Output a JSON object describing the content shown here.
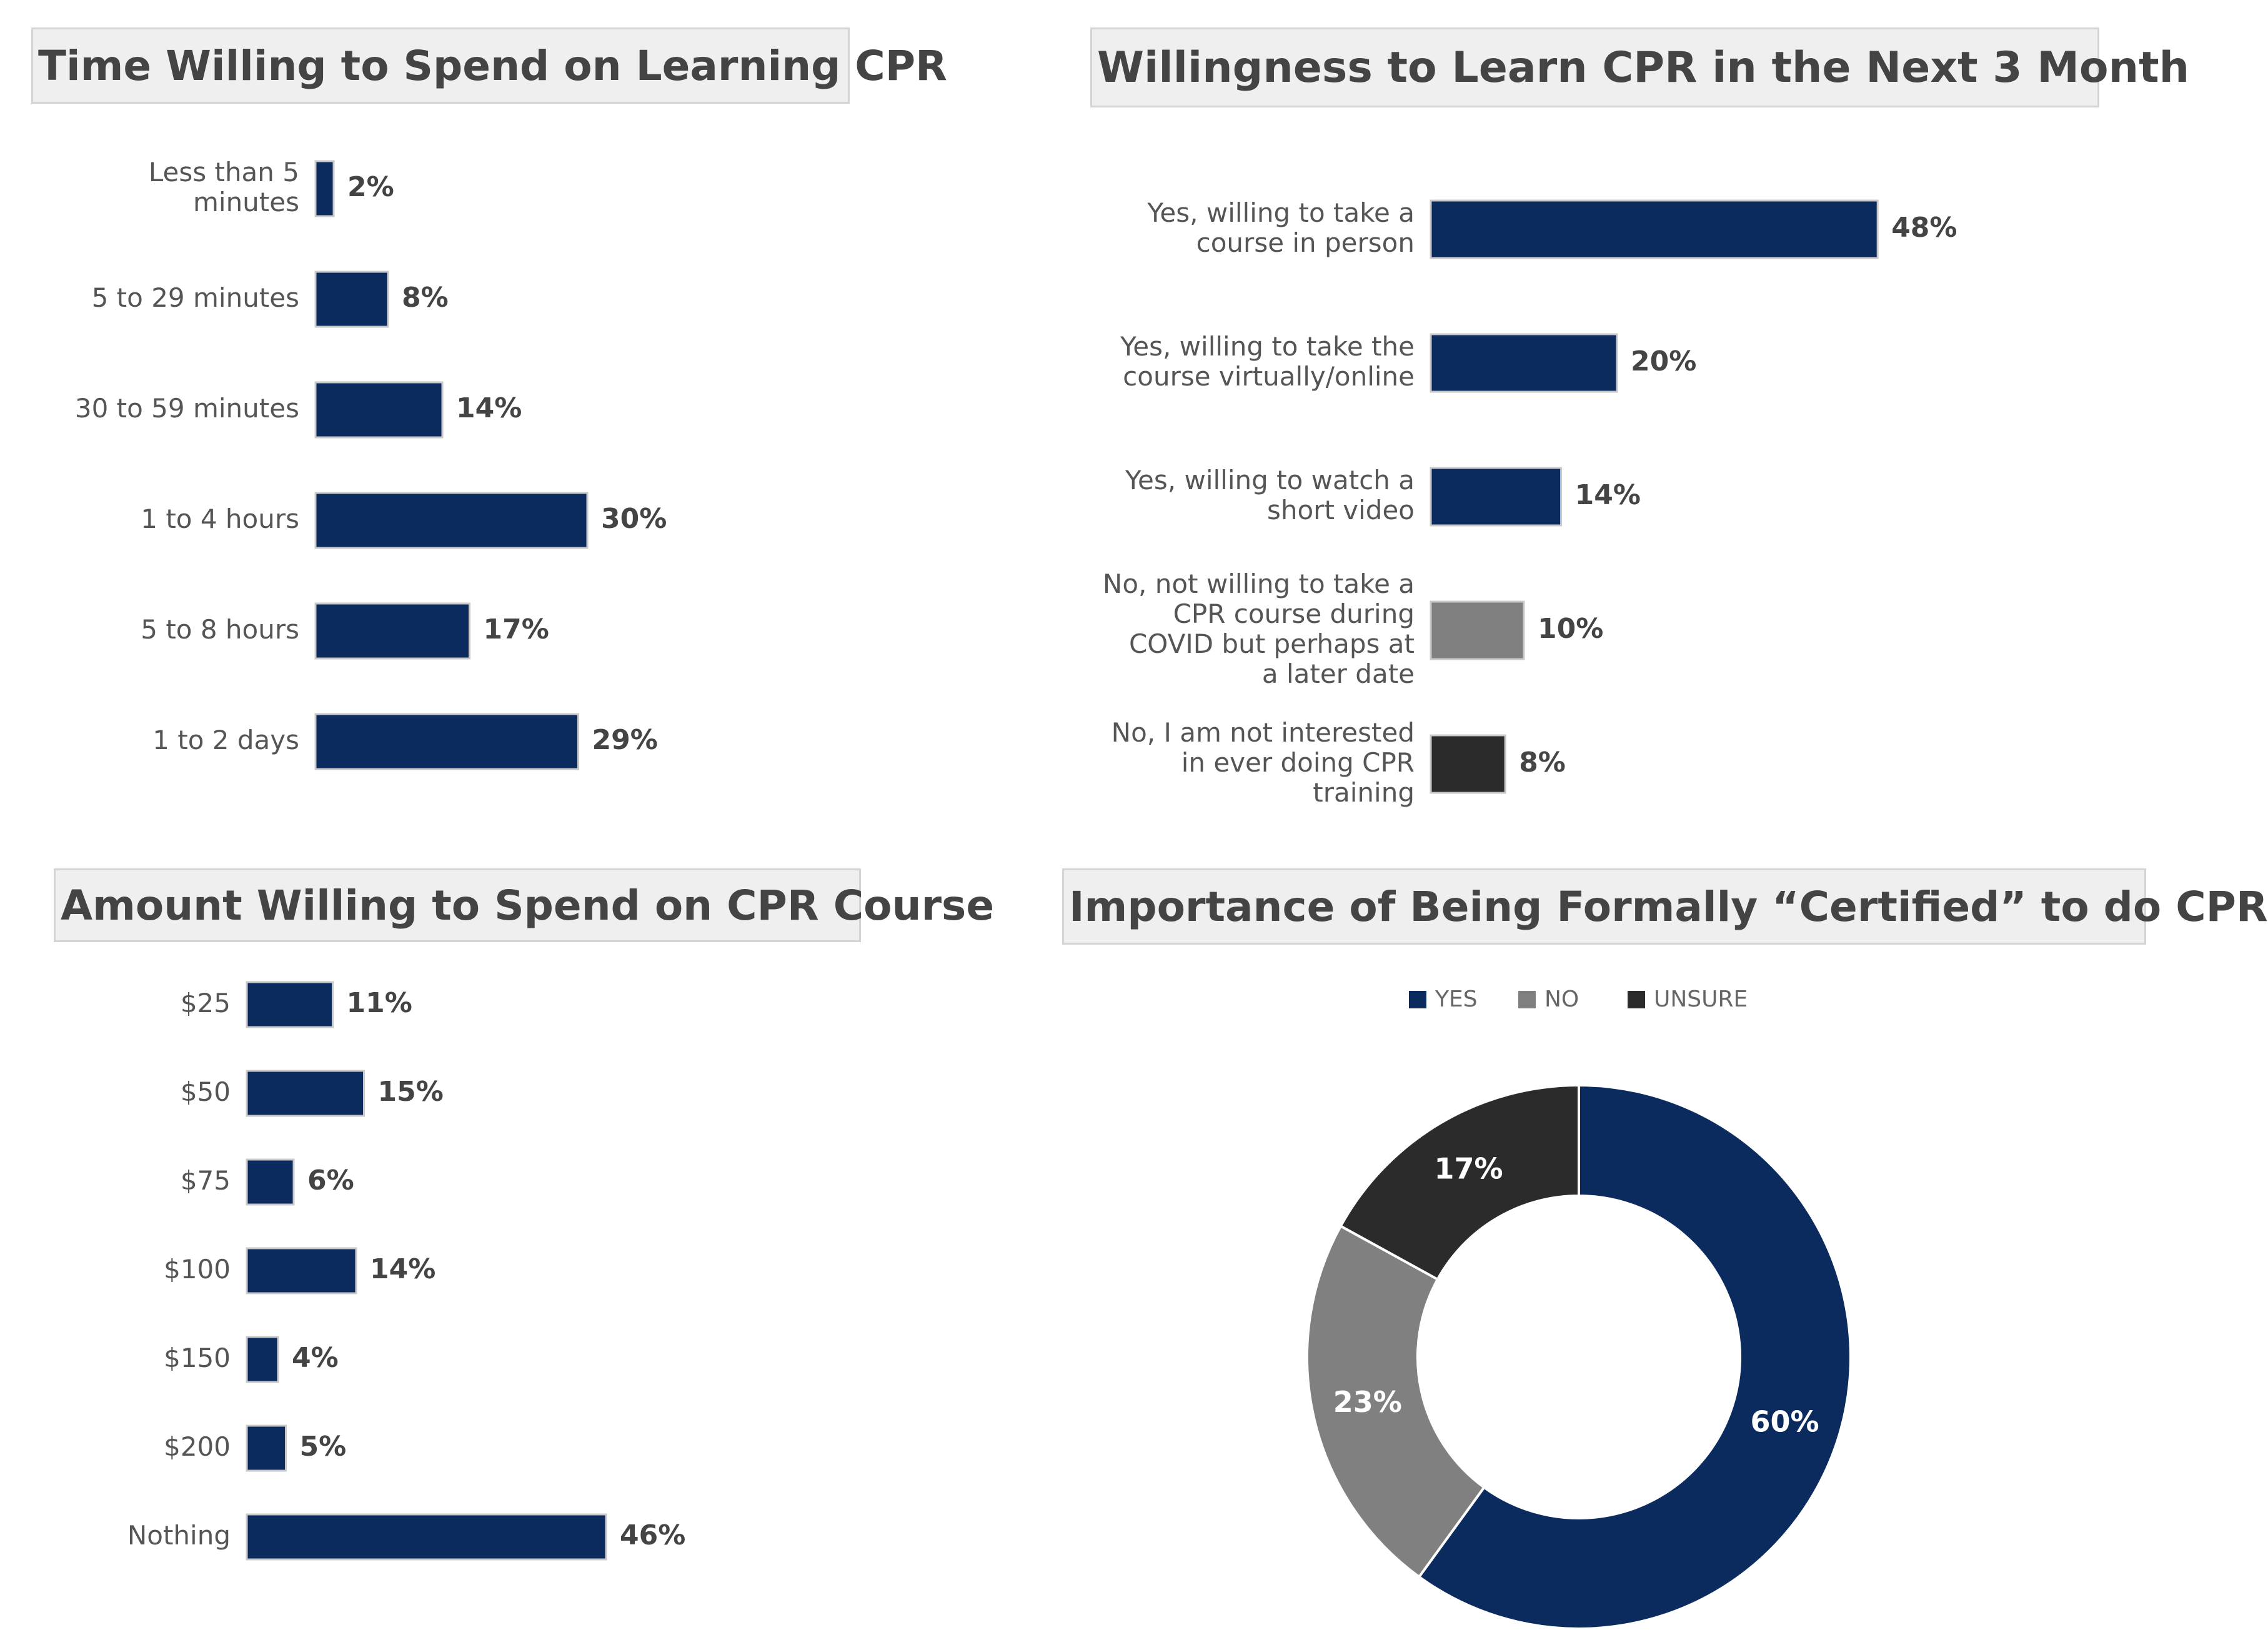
{
  "colors": {
    "navy": "#0b2a5e",
    "gray": "#808080",
    "dark": "#2b2b2b"
  },
  "chart_data": [
    {
      "id": "time",
      "type": "bar",
      "orientation": "horizontal",
      "title": "Time Willing to Spend on Learning CPR",
      "categories": [
        [
          "Less than 5",
          "minutes"
        ],
        [
          "5 to 29 minutes"
        ],
        [
          "30 to 59 minutes"
        ],
        [
          "1 to 4 hours"
        ],
        [
          "5 to 8 hours"
        ],
        [
          "1 to 2 days"
        ]
      ],
      "values": [
        2,
        8,
        14,
        30,
        17,
        29
      ],
      "labels": [
        "2%",
        "8%",
        "14%",
        "30%",
        "17%",
        "29%"
      ],
      "colors": [
        "#0b2a5e",
        "#0b2a5e",
        "#0b2a5e",
        "#0b2a5e",
        "#0b2a5e",
        "#0b2a5e"
      ]
    },
    {
      "id": "willing",
      "type": "bar",
      "orientation": "horizontal",
      "title": "Willingness to Learn CPR in the Next 3 Month",
      "categories": [
        [
          "Yes, willing to take a",
          "course in person"
        ],
        [
          "Yes, willing to take the",
          "course virtually/online"
        ],
        [
          "Yes, willing to watch a",
          "short video"
        ],
        [
          "No, not willing to take a",
          "CPR course during",
          "COVID but perhaps at",
          "a later date"
        ],
        [
          "No, I am not interested",
          "in ever doing CPR",
          "training"
        ]
      ],
      "values": [
        48,
        20,
        14,
        10,
        8
      ],
      "labels": [
        "48%",
        "20%",
        "14%",
        "10%",
        "8%"
      ],
      "colors": [
        "#0b2a5e",
        "#0b2a5e",
        "#0b2a5e",
        "#808080",
        "#2b2b2b"
      ]
    },
    {
      "id": "amount",
      "type": "bar",
      "orientation": "horizontal",
      "title": "Amount Willing to Spend on CPR Course",
      "categories": [
        [
          "$25"
        ],
        [
          "$50"
        ],
        [
          "$75"
        ],
        [
          "$100"
        ],
        [
          "$150"
        ],
        [
          "$200"
        ],
        [
          "Nothing"
        ]
      ],
      "values": [
        11,
        15,
        6,
        14,
        4,
        5,
        46
      ],
      "labels": [
        "11%",
        "15%",
        "6%",
        "14%",
        "4%",
        "5%",
        "46%"
      ],
      "colors": [
        "#0b2a5e",
        "#0b2a5e",
        "#0b2a5e",
        "#0b2a5e",
        "#0b2a5e",
        "#0b2a5e",
        "#0b2a5e"
      ]
    },
    {
      "id": "certified",
      "type": "pie",
      "style": "donut",
      "title": "Importance of Being Formally “Certified” to do CPR",
      "legend": [
        "YES",
        "NO",
        "UNSURE"
      ],
      "legend_position": "top",
      "values": [
        60,
        23,
        17
      ],
      "labels": [
        "60%",
        "23%",
        "17%"
      ],
      "colors": [
        "#0b2a5e",
        "#808080",
        "#2b2b2b"
      ]
    }
  ]
}
